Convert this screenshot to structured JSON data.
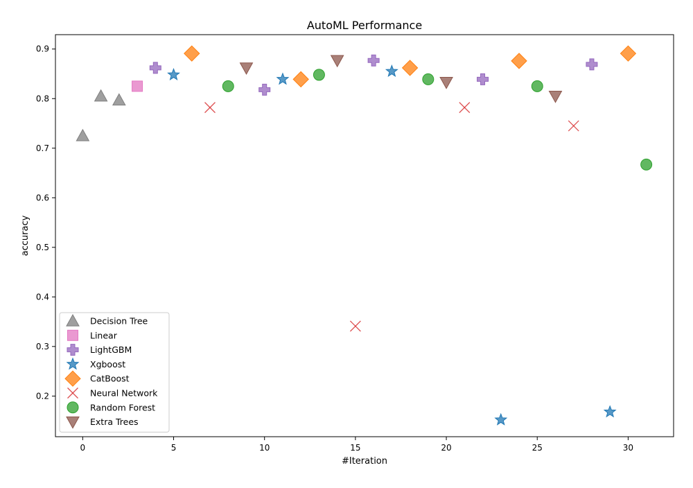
{
  "chart_data": {
    "type": "scatter",
    "title": "AutoML Performance",
    "xlabel": "#Iteration",
    "ylabel": "accuracy",
    "xlim": [
      -1.5,
      32.5
    ],
    "ylim": [
      0.118,
      0.929
    ],
    "xticks": [
      0,
      5,
      10,
      15,
      20,
      25,
      30
    ],
    "yticks": [
      0.2,
      0.3,
      0.4,
      0.5,
      0.6,
      0.7,
      0.8,
      0.9
    ],
    "grid": false,
    "legend_position": "lower-left",
    "series": [
      {
        "name": "Decision Tree",
        "marker": "triangle-up",
        "color": "#7f7f7f",
        "points": [
          [
            0,
            0.725
          ],
          [
            1,
            0.805
          ],
          [
            2,
            0.797
          ]
        ]
      },
      {
        "name": "Linear",
        "marker": "square",
        "color": "#e377c2",
        "points": [
          [
            3,
            0.825
          ]
        ]
      },
      {
        "name": "LightGBM",
        "marker": "plus",
        "color": "#9467bd",
        "points": [
          [
            4,
            0.862
          ],
          [
            10,
            0.818
          ],
          [
            16,
            0.877
          ],
          [
            22,
            0.839
          ],
          [
            28,
            0.869
          ]
        ]
      },
      {
        "name": "Xgboost",
        "marker": "star",
        "color": "#1f77b4",
        "points": [
          [
            5,
            0.848
          ],
          [
            11,
            0.839
          ],
          [
            17,
            0.855
          ],
          [
            23,
            0.152
          ],
          [
            29,
            0.168
          ]
        ]
      },
      {
        "name": "CatBoost",
        "marker": "diamond",
        "color": "#ff7f0e",
        "points": [
          [
            6,
            0.891
          ],
          [
            12,
            0.839
          ],
          [
            18,
            0.862
          ],
          [
            24,
            0.876
          ],
          [
            30,
            0.891
          ]
        ]
      },
      {
        "name": "Neural Network",
        "marker": "x",
        "color": "#d62728",
        "points": [
          [
            7,
            0.782
          ],
          [
            15,
            0.341
          ],
          [
            21,
            0.782
          ],
          [
            27,
            0.745
          ]
        ]
      },
      {
        "name": "Random Forest",
        "marker": "circle",
        "color": "#2ca02c",
        "points": [
          [
            8,
            0.825
          ],
          [
            13,
            0.848
          ],
          [
            19,
            0.839
          ],
          [
            25,
            0.825
          ],
          [
            31,
            0.667
          ]
        ]
      },
      {
        "name": "Extra Trees",
        "marker": "triangle-down",
        "color": "#8c564b",
        "points": [
          [
            9,
            0.862
          ],
          [
            14,
            0.877
          ],
          [
            20,
            0.833
          ],
          [
            26,
            0.805
          ]
        ]
      }
    ]
  }
}
